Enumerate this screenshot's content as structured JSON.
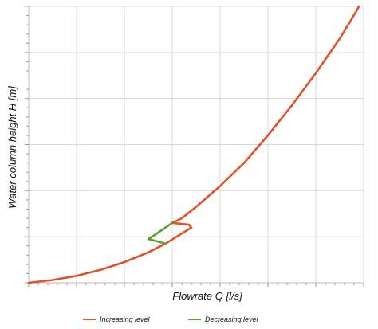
{
  "chart_data": {
    "type": "line",
    "title": "",
    "xlabel": "Flowrate Q  [l/s]",
    "ylabel": "Water column height  H  [m]",
    "x_tick_labels": [],
    "y_tick_labels": [],
    "xlim": [
      0,
      7
    ],
    "ylim": [
      0,
      6
    ],
    "grid": true,
    "legend_position": "bottom",
    "series": [
      {
        "name": "Increasing level",
        "color": "#e0522a",
        "points": [
          [
            0.0,
            0.0
          ],
          [
            0.5,
            0.06
          ],
          [
            1.0,
            0.15
          ],
          [
            1.5,
            0.28
          ],
          [
            2.0,
            0.45
          ],
          [
            2.5,
            0.66
          ],
          [
            2.86,
            0.85
          ],
          [
            3.4,
            1.2
          ],
          [
            3.35,
            1.26
          ],
          [
            3.0,
            1.3
          ],
          [
            3.2,
            1.4
          ],
          [
            3.5,
            1.65
          ],
          [
            4.0,
            2.1
          ],
          [
            4.5,
            2.6
          ],
          [
            5.0,
            3.2
          ],
          [
            5.5,
            3.85
          ],
          [
            6.0,
            4.55
          ],
          [
            6.5,
            5.3
          ],
          [
            6.85,
            5.9
          ],
          [
            6.9,
            6.0
          ]
        ]
      },
      {
        "name": "Decreasing level",
        "color": "#5aa02c",
        "points": [
          [
            2.86,
            0.85
          ],
          [
            2.5,
            0.95
          ],
          [
            2.65,
            1.05
          ],
          [
            3.0,
            1.3
          ]
        ]
      }
    ]
  }
}
